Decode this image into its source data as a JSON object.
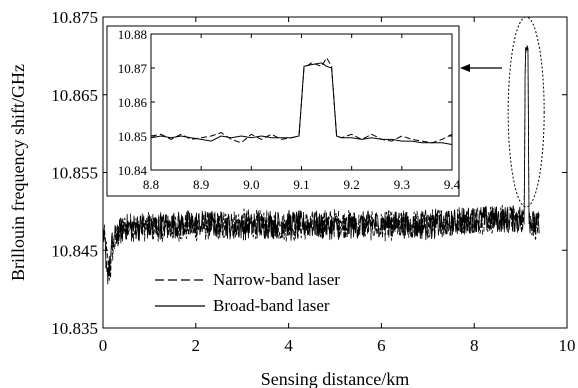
{
  "chart_data": [
    {
      "type": "line",
      "title": "",
      "xlabel": "Sensing distance/km",
      "ylabel": "Brillouin frequency shift/GHz",
      "xlim": [
        0,
        10
      ],
      "ylim": [
        10.835,
        10.875
      ],
      "xticks": [
        "0",
        "2",
        "4",
        "6",
        "8",
        "10"
      ],
      "yticks": [
        "10.835",
        "10.845",
        "10.855",
        "10.865",
        "10.875"
      ],
      "legend_position": "bottom-left",
      "grid": false,
      "series": [
        {
          "name": "Narrow-band laser",
          "style": "dashed",
          "x": [
            0.0,
            0.05,
            0.1,
            0.15,
            0.2,
            0.3,
            0.5,
            1.0,
            2.0,
            3.0,
            4.0,
            5.0,
            6.0,
            7.0,
            8.0,
            8.8,
            9.0,
            9.08,
            9.1,
            9.14,
            9.16,
            9.18,
            9.25,
            9.4
          ],
          "y": [
            10.847,
            10.846,
            10.843,
            10.842,
            10.845,
            10.847,
            10.848,
            10.848,
            10.848,
            10.8485,
            10.848,
            10.8485,
            10.848,
            10.8485,
            10.849,
            10.849,
            10.849,
            10.849,
            10.871,
            10.872,
            10.871,
            10.849,
            10.8485,
            10.848
          ],
          "noise_amplitude": 0.0012
        },
        {
          "name": "Broad-band laser",
          "style": "solid",
          "x": [
            0.0,
            0.05,
            0.1,
            0.15,
            0.2,
            0.3,
            0.5,
            1.0,
            2.0,
            3.0,
            4.0,
            5.0,
            6.0,
            7.0,
            8.0,
            8.8,
            9.0,
            9.08,
            9.1,
            9.14,
            9.16,
            9.18,
            9.25,
            9.4
          ],
          "y": [
            10.847,
            10.845,
            10.842,
            10.843,
            10.846,
            10.847,
            10.848,
            10.848,
            10.8485,
            10.848,
            10.8485,
            10.848,
            10.8485,
            10.848,
            10.849,
            10.849,
            10.849,
            10.849,
            10.871,
            10.8715,
            10.871,
            10.849,
            10.8485,
            10.848
          ],
          "noise_amplitude": 0.0011
        }
      ],
      "annotations": [
        "dotted ellipse around peak near 9.1 km",
        "arrow pointing to inset"
      ]
    },
    {
      "type": "line",
      "title": "",
      "xlim": [
        8.8,
        9.4
      ],
      "ylim": [
        10.84,
        10.88
      ],
      "xticks": [
        "8.8",
        "8.9",
        "9.0",
        "9.1",
        "9.2",
        "9.3",
        "9.4"
      ],
      "yticks": [
        "10.84",
        "10.85",
        "10.86",
        "10.87",
        "10.88"
      ],
      "series": [
        {
          "name": "Narrow-band laser",
          "style": "dashed",
          "x": [
            8.8,
            8.82,
            8.84,
            8.86,
            8.88,
            8.9,
            8.92,
            8.94,
            8.96,
            8.98,
            9.0,
            9.02,
            9.04,
            9.06,
            9.08,
            9.095,
            9.105,
            9.12,
            9.14,
            9.15,
            9.16,
            9.17,
            9.18,
            9.2,
            9.22,
            9.24,
            9.26,
            9.28,
            9.3,
            9.32,
            9.34,
            9.36,
            9.38,
            9.4
          ],
          "y": [
            10.85,
            10.8505,
            10.849,
            10.8505,
            10.849,
            10.8495,
            10.85,
            10.851,
            10.849,
            10.848,
            10.8505,
            10.849,
            10.8505,
            10.849,
            10.8495,
            10.85,
            10.87,
            10.8715,
            10.8705,
            10.873,
            10.8705,
            10.85,
            10.8495,
            10.8505,
            10.849,
            10.8505,
            10.849,
            10.8485,
            10.85,
            10.849,
            10.8485,
            10.848,
            10.849,
            10.8505
          ]
        },
        {
          "name": "Broad-band laser",
          "style": "solid",
          "x": [
            8.8,
            8.82,
            8.84,
            8.86,
            8.88,
            8.9,
            8.92,
            8.94,
            8.96,
            8.98,
            9.0,
            9.02,
            9.04,
            9.06,
            9.08,
            9.095,
            9.105,
            9.12,
            9.14,
            9.15,
            9.16,
            9.17,
            9.18,
            9.2,
            9.22,
            9.24,
            9.26,
            9.28,
            9.3,
            9.32,
            9.34,
            9.36,
            9.38,
            9.4
          ],
          "y": [
            10.8495,
            10.85,
            10.8495,
            10.85,
            10.8495,
            10.849,
            10.8485,
            10.85,
            10.8495,
            10.85,
            10.8495,
            10.85,
            10.8495,
            10.8495,
            10.8495,
            10.85,
            10.8705,
            10.871,
            10.8715,
            10.8705,
            10.87,
            10.85,
            10.8495,
            10.8495,
            10.849,
            10.8495,
            10.849,
            10.849,
            10.8485,
            10.8485,
            10.848,
            10.848,
            10.848,
            10.8475
          ]
        }
      ]
    }
  ]
}
